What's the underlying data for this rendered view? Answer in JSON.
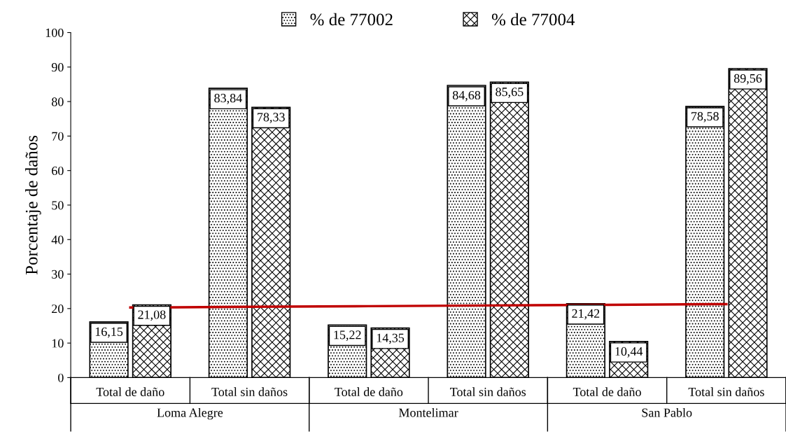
{
  "chart_data": {
    "type": "bar",
    "ylabel": "Porcentaje de daños",
    "categories": [
      "Total de daño",
      "Total sin daños",
      "Total de daño",
      "Total sin daños",
      "Total de daño",
      "Total sin daños"
    ],
    "series": [
      {
        "name": "% de 77002",
        "color": "#000000",
        "values": [
          16.15,
          83.84,
          15.22,
          84.68,
          21.42,
          78.58
        ],
        "value_labels": [
          "16,15",
          "83,84",
          "15,22",
          "84,68",
          "21,42",
          "78,58"
        ]
      },
      {
        "name": "% de 77004",
        "color": "#000000",
        "values": [
          21.08,
          78.33,
          14.35,
          85.65,
          10.44,
          89.56
        ],
        "value_labels": [
          "21,08",
          "78,33",
          "14,35",
          "85,65",
          "10,44",
          "89,56"
        ]
      },
      {
        "type": "line",
        "color": "#c00000",
        "values": [
          20.3,
          20.5,
          20.7,
          20.9,
          21.1,
          21.3
        ]
      }
    ],
    "annotations": [
      "Loma Alegre",
      "Montelimar",
      "San Pablo"
    ],
    "ylim": [
      0,
      100
    ],
    "yticks": [
      0,
      10,
      20,
      30,
      40,
      50,
      60,
      70,
      80,
      90,
      100
    ],
    "legend": "top",
    "grid": false
  }
}
